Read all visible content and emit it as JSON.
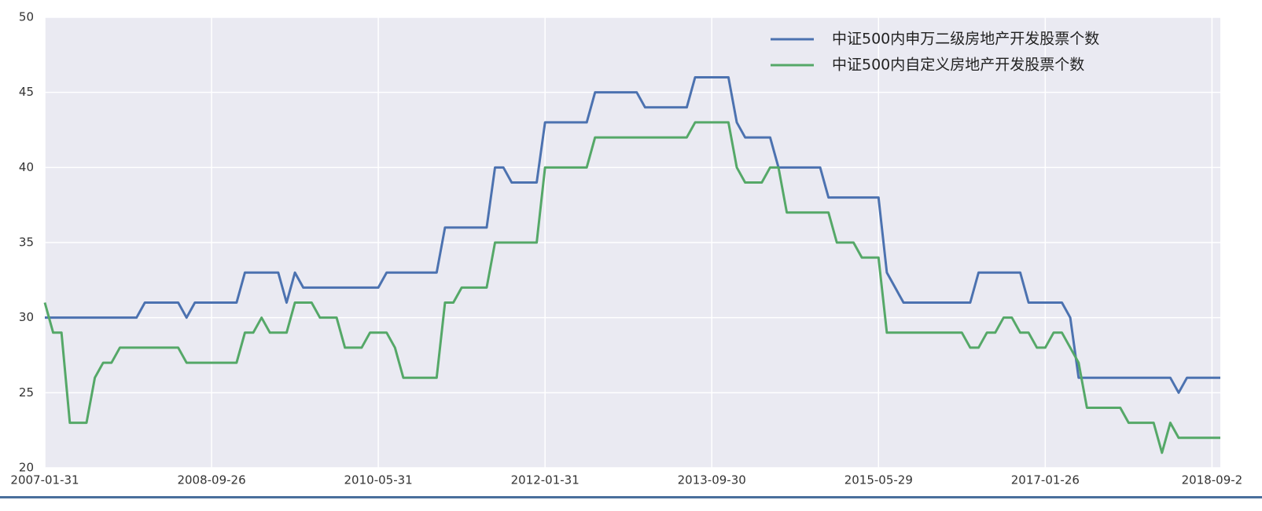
{
  "chart_data": {
    "type": "line",
    "categories": [
      "2007-01-31",
      null,
      null,
      null,
      null,
      null,
      null,
      null,
      null,
      null,
      null,
      null,
      null,
      null,
      null,
      null,
      null,
      null,
      null,
      null,
      "2008-09-26",
      null,
      null,
      null,
      null,
      null,
      null,
      null,
      null,
      null,
      null,
      null,
      null,
      null,
      null,
      null,
      null,
      null,
      null,
      null,
      "2010-05-31",
      null,
      null,
      null,
      null,
      null,
      null,
      null,
      null,
      null,
      null,
      null,
      null,
      null,
      null,
      null,
      null,
      null,
      null,
      null,
      "2012-01-31",
      null,
      null,
      null,
      null,
      null,
      null,
      null,
      null,
      null,
      null,
      null,
      null,
      null,
      null,
      null,
      null,
      null,
      null,
      null,
      "2013-09-30",
      null,
      null,
      null,
      null,
      null,
      null,
      null,
      null,
      null,
      null,
      null,
      null,
      null,
      null,
      null,
      null,
      null,
      null,
      null,
      "2015-05-29",
      null,
      null,
      null,
      null,
      null,
      null,
      null,
      null,
      null,
      null,
      null,
      null,
      null,
      null,
      null,
      null,
      null,
      null,
      null,
      "2017-01-26",
      null,
      null,
      null,
      null,
      null,
      null,
      null,
      null,
      null,
      null,
      null,
      null,
      null,
      null,
      null,
      null,
      null,
      null,
      null,
      "2018-09-2",
      null
    ],
    "series": [
      {
        "name": "中证500内申万二级房地产开发股票个数",
        "color": "#4c72b0",
        "values": [
          30,
          30,
          30,
          30,
          30,
          30,
          30,
          30,
          30,
          30,
          30,
          30,
          31,
          31,
          31,
          31,
          31,
          30,
          31,
          31,
          31,
          31,
          31,
          31,
          33,
          33,
          33,
          33,
          33,
          31,
          33,
          32,
          32,
          32,
          32,
          32,
          32,
          32,
          32,
          32,
          32,
          33,
          33,
          33,
          33,
          33,
          33,
          33,
          36,
          36,
          36,
          36,
          36,
          36,
          40,
          40,
          39,
          39,
          39,
          39,
          43,
          43,
          43,
          43,
          43,
          43,
          45,
          45,
          45,
          45,
          45,
          45,
          44,
          44,
          44,
          44,
          44,
          44,
          46,
          46,
          46,
          46,
          46,
          43,
          42,
          42,
          42,
          42,
          40,
          40,
          40,
          40,
          40,
          40,
          38,
          38,
          38,
          38,
          38,
          38,
          38,
          33,
          32,
          31,
          31,
          31,
          31,
          31,
          31,
          31,
          31,
          31,
          33,
          33,
          33,
          33,
          33,
          33,
          31,
          31,
          31,
          31,
          31,
          30,
          26,
          26,
          26,
          26,
          26,
          26,
          26,
          26,
          26,
          26,
          26,
          26,
          25,
          26,
          26,
          26,
          26,
          26
        ]
      },
      {
        "name": "中证500内自定义房地产开发股票个数",
        "color": "#55a868",
        "values": [
          31,
          29,
          29,
          23,
          23,
          23,
          26,
          27,
          27,
          28,
          28,
          28,
          28,
          28,
          28,
          28,
          28,
          27,
          27,
          27,
          27,
          27,
          27,
          27,
          29,
          29,
          30,
          29,
          29,
          29,
          31,
          31,
          31,
          30,
          30,
          30,
          28,
          28,
          28,
          29,
          29,
          29,
          28,
          26,
          26,
          26,
          26,
          26,
          31,
          31,
          32,
          32,
          32,
          32,
          35,
          35,
          35,
          35,
          35,
          35,
          40,
          40,
          40,
          40,
          40,
          40,
          42,
          42,
          42,
          42,
          42,
          42,
          42,
          42,
          42,
          42,
          42,
          42,
          43,
          43,
          43,
          43,
          43,
          40,
          39,
          39,
          39,
          40,
          40,
          37,
          37,
          37,
          37,
          37,
          37,
          35,
          35,
          35,
          34,
          34,
          34,
          29,
          29,
          29,
          29,
          29,
          29,
          29,
          29,
          29,
          29,
          28,
          28,
          29,
          29,
          30,
          30,
          29,
          29,
          28,
          28,
          29,
          29,
          28,
          27,
          24,
          24,
          24,
          24,
          24,
          23,
          23,
          23,
          23,
          21,
          23,
          22,
          22,
          22,
          22,
          22,
          22
        ]
      }
    ],
    "ylim": [
      20,
      50
    ],
    "yticks": [
      20,
      25,
      30,
      35,
      40,
      45,
      50
    ],
    "grid": true,
    "legend": "upper right"
  }
}
